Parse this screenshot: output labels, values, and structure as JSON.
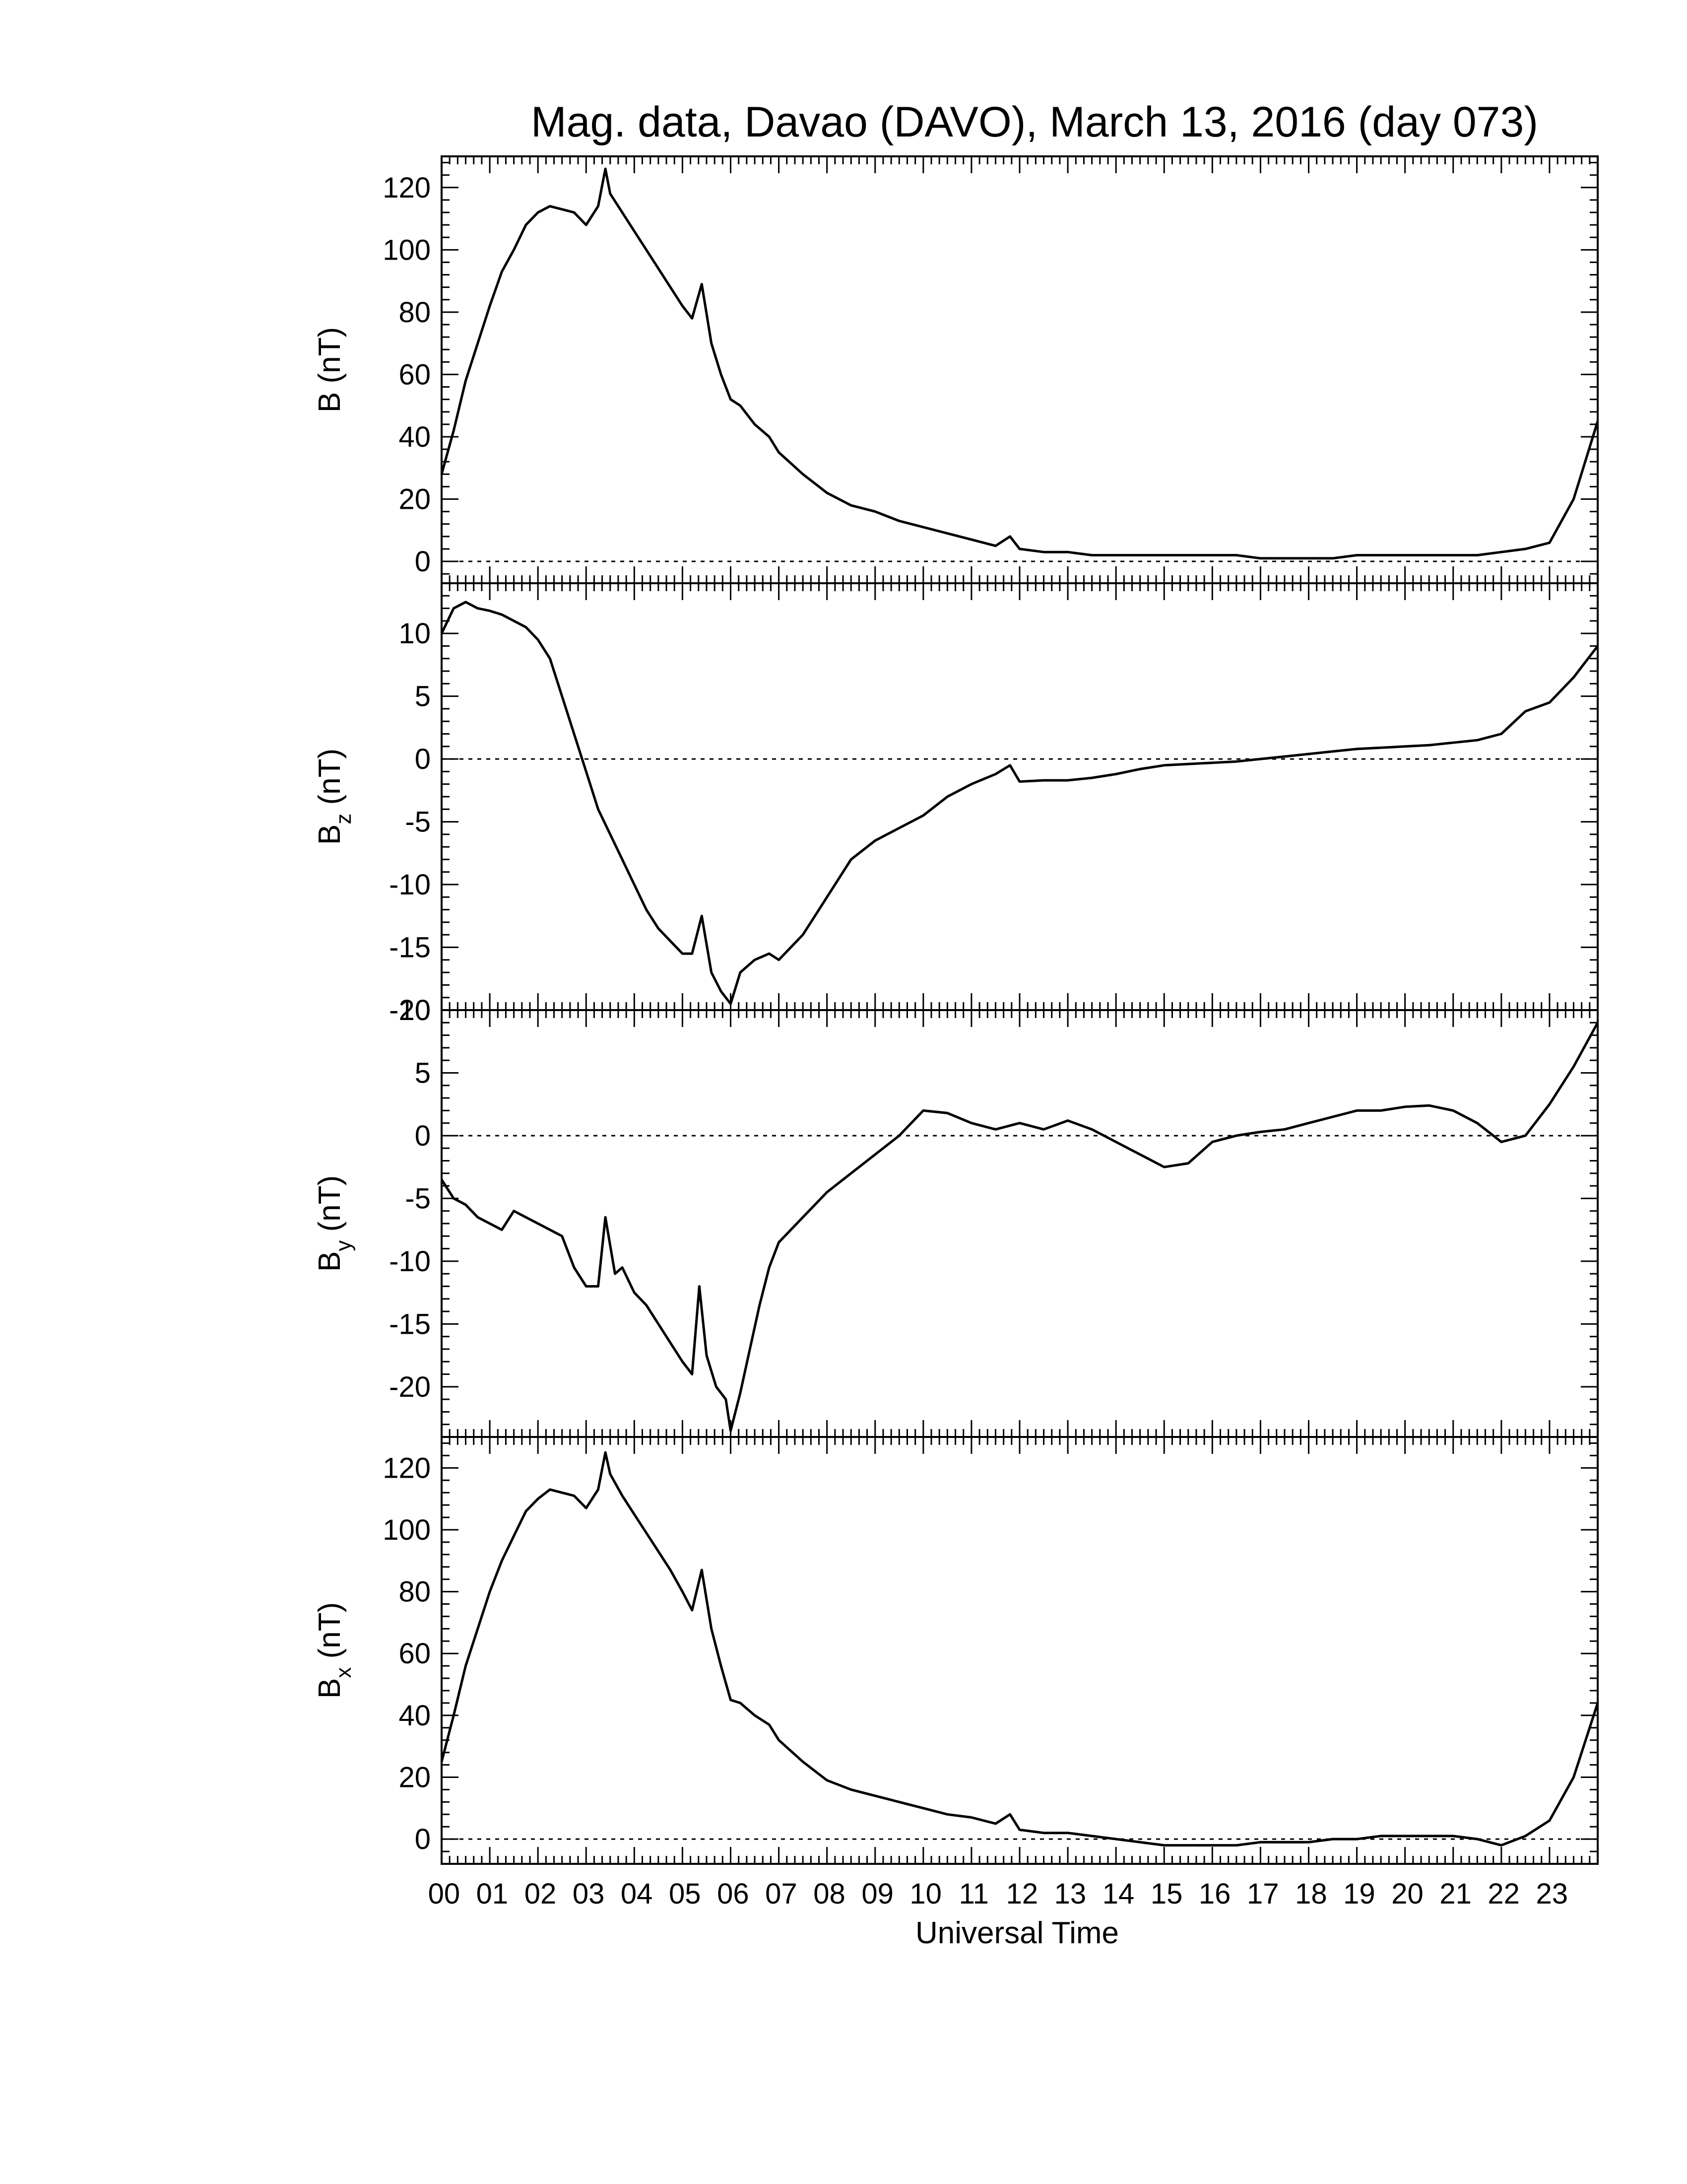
{
  "chart_data": {
    "type": "line",
    "title": "Mag. data, Davao (DAVO), March 13, 2016 (day 073)",
    "xlabel": "Universal Time",
    "x_ticks": [
      "00",
      "01",
      "02",
      "03",
      "04",
      "05",
      "06",
      "07",
      "08",
      "09",
      "10",
      "11",
      "12",
      "13",
      "14",
      "15",
      "16",
      "17",
      "18",
      "19",
      "20",
      "21",
      "22",
      "23"
    ],
    "xlim": [
      0,
      24
    ],
    "panels": [
      {
        "ylabel_main": "B (nT)",
        "ylabel_sub": "",
        "ylim": [
          -7,
          130
        ],
        "yticks": [
          0,
          20,
          40,
          60,
          80,
          100,
          120
        ],
        "x": [
          0,
          0.25,
          0.5,
          0.75,
          1,
          1.25,
          1.5,
          1.75,
          2,
          2.25,
          2.5,
          2.75,
          3,
          3.25,
          3.4,
          3.5,
          3.75,
          4,
          4.25,
          4.5,
          4.75,
          5,
          5.2,
          5.4,
          5.6,
          5.8,
          6,
          6.2,
          6.5,
          6.8,
          7,
          7.5,
          8,
          8.5,
          9,
          9.5,
          10,
          10.5,
          11,
          11.5,
          11.8,
          12,
          12.5,
          13,
          13.5,
          14,
          14.5,
          15,
          15.5,
          16,
          16.5,
          17,
          17.5,
          18,
          18.5,
          19,
          19.5,
          20,
          20.5,
          21,
          21.5,
          22,
          22.5,
          23,
          23.5,
          24
        ],
        "values": [
          28,
          42,
          58,
          70,
          82,
          93,
          100,
          108,
          112,
          114,
          113,
          112,
          108,
          114,
          126,
          118,
          112,
          106,
          100,
          94,
          88,
          82,
          78,
          89,
          70,
          60,
          52,
          50,
          44,
          40,
          35,
          28,
          22,
          18,
          16,
          13,
          11,
          9,
          7,
          5,
          8,
          4,
          3,
          3,
          2,
          2,
          2,
          2,
          2,
          2,
          2,
          1,
          1,
          1,
          1,
          2,
          2,
          2,
          2,
          2,
          2,
          3,
          4,
          6,
          20,
          45
        ]
      },
      {
        "ylabel_main": "B",
        "ylabel_sub": "z",
        "ylabel_unit": " (nT)",
        "ylim": [
          -20,
          14
        ],
        "yticks": [
          -20,
          -15,
          -10,
          -5,
          0,
          5,
          10
        ],
        "x": [
          0,
          0.25,
          0.5,
          0.75,
          1,
          1.25,
          1.5,
          1.75,
          2,
          2.25,
          2.5,
          2.75,
          3,
          3.25,
          3.5,
          3.75,
          4,
          4.25,
          4.5,
          4.75,
          5,
          5.2,
          5.4,
          5.6,
          5.8,
          6,
          6.2,
          6.5,
          6.8,
          7,
          7.5,
          8,
          8.5,
          9,
          9.5,
          10,
          10.5,
          11,
          11.5,
          11.8,
          12,
          12.5,
          13,
          13.5,
          14,
          14.5,
          15,
          15.5,
          16,
          16.5,
          17,
          17.5,
          18,
          18.5,
          19,
          19.5,
          20,
          20.5,
          21,
          21.5,
          22,
          22.5,
          23,
          23.5,
          24
        ],
        "values": [
          10,
          12,
          12.5,
          12,
          11.8,
          11.5,
          11,
          10.5,
          9.5,
          8,
          5,
          2,
          -1,
          -4,
          -6,
          -8,
          -10,
          -12,
          -13.5,
          -14.5,
          -15.5,
          -15.5,
          -12.5,
          -17,
          -18.5,
          -19.5,
          -17,
          -16,
          -15.5,
          -16,
          -14,
          -11,
          -8,
          -6.5,
          -5.5,
          -4.5,
          -3,
          -2,
          -1.2,
          -0.5,
          -1.8,
          -1.7,
          -1.7,
          -1.5,
          -1.2,
          -0.8,
          -0.5,
          -0.4,
          -0.3,
          -0.2,
          0,
          0.2,
          0.4,
          0.6,
          0.8,
          0.9,
          1,
          1.1,
          1.3,
          1.5,
          2,
          3.8,
          4.5,
          6.5,
          9
        ]
      },
      {
        "ylabel_main": "B",
        "ylabel_sub": "y",
        "ylabel_unit": " (nT)",
        "ylim": [
          -24,
          10
        ],
        "yticks": [
          -20,
          -15,
          -10,
          -5,
          0,
          5,
          10
        ],
        "x": [
          0,
          0.25,
          0.5,
          0.75,
          1,
          1.25,
          1.5,
          1.75,
          2,
          2.25,
          2.5,
          2.75,
          3,
          3.25,
          3.4,
          3.6,
          3.75,
          4,
          4.25,
          4.5,
          4.75,
          5,
          5.2,
          5.35,
          5.5,
          5.7,
          5.9,
          6,
          6.2,
          6.4,
          6.6,
          6.8,
          7,
          7.5,
          8,
          8.5,
          9,
          9.5,
          10,
          10.5,
          11,
          11.5,
          12,
          12.5,
          13,
          13.5,
          14,
          14.5,
          15,
          15.5,
          16,
          16.5,
          17,
          17.5,
          18,
          18.5,
          19,
          19.5,
          20,
          20.5,
          21,
          21.5,
          22,
          22.5,
          23,
          23.5,
          24
        ],
        "values": [
          -3.5,
          -5,
          -5.5,
          -6.5,
          -7,
          -7.5,
          -6,
          -6.5,
          -7,
          -7.5,
          -8,
          -10.5,
          -12,
          -12,
          -6.5,
          -11,
          -10.5,
          -12.5,
          -13.5,
          -15,
          -16.5,
          -18,
          -19,
          -12,
          -17.5,
          -20,
          -21,
          -23.5,
          -20.5,
          -17,
          -13.5,
          -10.5,
          -8.5,
          -6.5,
          -4.5,
          -3,
          -1.5,
          0,
          2,
          1.8,
          1,
          0.5,
          1,
          0.5,
          1.2,
          0.5,
          -0.5,
          -1.5,
          -2.5,
          -2.2,
          -0.5,
          0,
          0.3,
          0.5,
          1,
          1.5,
          2,
          2,
          2.3,
          2.4,
          2,
          1,
          -0.5,
          0,
          2.5,
          5.5,
          9
        ]
      },
      {
        "ylabel_main": "B",
        "ylabel_sub": "x",
        "ylabel_unit": " (nT)",
        "ylim": [
          -8,
          130
        ],
        "yticks": [
          0,
          20,
          40,
          60,
          80,
          100,
          120
        ],
        "x": [
          0,
          0.25,
          0.5,
          0.75,
          1,
          1.25,
          1.5,
          1.75,
          2,
          2.25,
          2.5,
          2.75,
          3,
          3.25,
          3.4,
          3.5,
          3.75,
          4,
          4.25,
          4.5,
          4.75,
          5,
          5.2,
          5.4,
          5.6,
          5.8,
          6,
          6.2,
          6.5,
          6.8,
          7,
          7.5,
          8,
          8.5,
          9,
          9.5,
          10,
          10.5,
          11,
          11.5,
          11.8,
          12,
          12.5,
          13,
          13.5,
          14,
          14.5,
          15,
          15.5,
          16,
          16.5,
          17,
          17.5,
          18,
          18.5,
          19,
          19.5,
          20,
          20.5,
          21,
          21.5,
          22,
          22.5,
          23,
          23.5,
          24
        ],
        "values": [
          25,
          40,
          56,
          68,
          80,
          90,
          98,
          106,
          110,
          113,
          112,
          111,
          107,
          113,
          125,
          118,
          111,
          105,
          99,
          93,
          87,
          80,
          74,
          87,
          68,
          56,
          45,
          44,
          40,
          37,
          32,
          25,
          19,
          16,
          14,
          12,
          10,
          8,
          7,
          5,
          8,
          3,
          2,
          2,
          1,
          0,
          -1,
          -2,
          -2,
          -2,
          -2,
          -1,
          -1,
          -1,
          0,
          0,
          1,
          1,
          1,
          1,
          0,
          -2,
          1,
          6,
          20,
          44
        ]
      }
    ],
    "grid": false,
    "legend": "none"
  }
}
